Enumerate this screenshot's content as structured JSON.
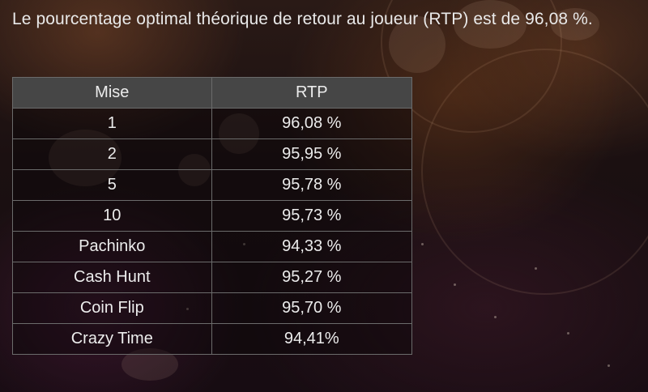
{
  "intro_text": "Le pourcentage optimal théorique de retour au joueur (RTP) est de 96,08 %.",
  "table": {
    "headers": {
      "mise": "Mise",
      "rtp": "RTP"
    },
    "rows": [
      {
        "mise": "1",
        "rtp": "96,08 %"
      },
      {
        "mise": "2",
        "rtp": "95,95 %"
      },
      {
        "mise": "5",
        "rtp": "95,78 %"
      },
      {
        "mise": "10",
        "rtp": "95,73 %"
      },
      {
        "mise": "Pachinko",
        "rtp": "94,33 %"
      },
      {
        "mise": "Cash Hunt",
        "rtp": "95,27 %"
      },
      {
        "mise": "Coin Flip",
        "rtp": "95,70 %"
      },
      {
        "mise": "Crazy Time",
        "rtp": "94,41%"
      }
    ]
  }
}
